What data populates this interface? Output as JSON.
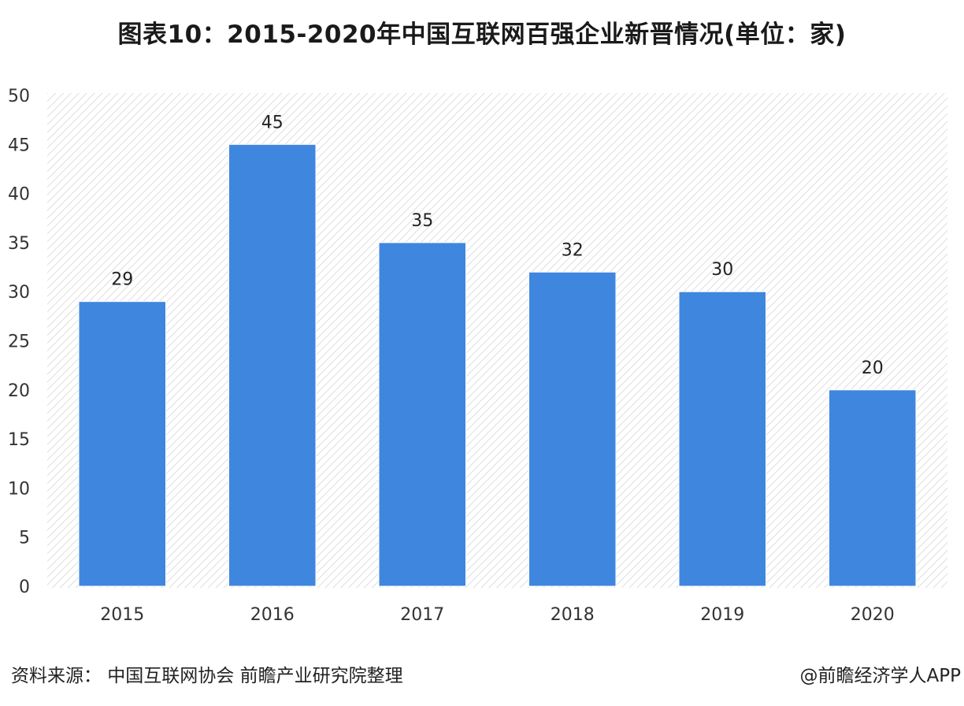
{
  "chart_data": {
    "type": "bar",
    "title": "图表10：2015-2020年中国互联网百强企业新晋情况(单位：家)",
    "categories": [
      "2015",
      "2016",
      "2017",
      "2018",
      "2019",
      "2020"
    ],
    "values": [
      29,
      45,
      35,
      32,
      30,
      20
    ],
    "ylim": [
      0,
      50
    ],
    "yticks": [
      "0",
      "5",
      "10",
      "15",
      "20",
      "25",
      "30",
      "35",
      "40",
      "45",
      "50"
    ],
    "xlabel": "",
    "ylabel": "",
    "bar_color": "#3f86df",
    "data_labels": true,
    "grid": false,
    "legend": "none"
  },
  "footer": {
    "source": "资料来源：  中国互联网协会 前瞻产业研究院整理",
    "credit": "@前瞻经济学人APP"
  }
}
